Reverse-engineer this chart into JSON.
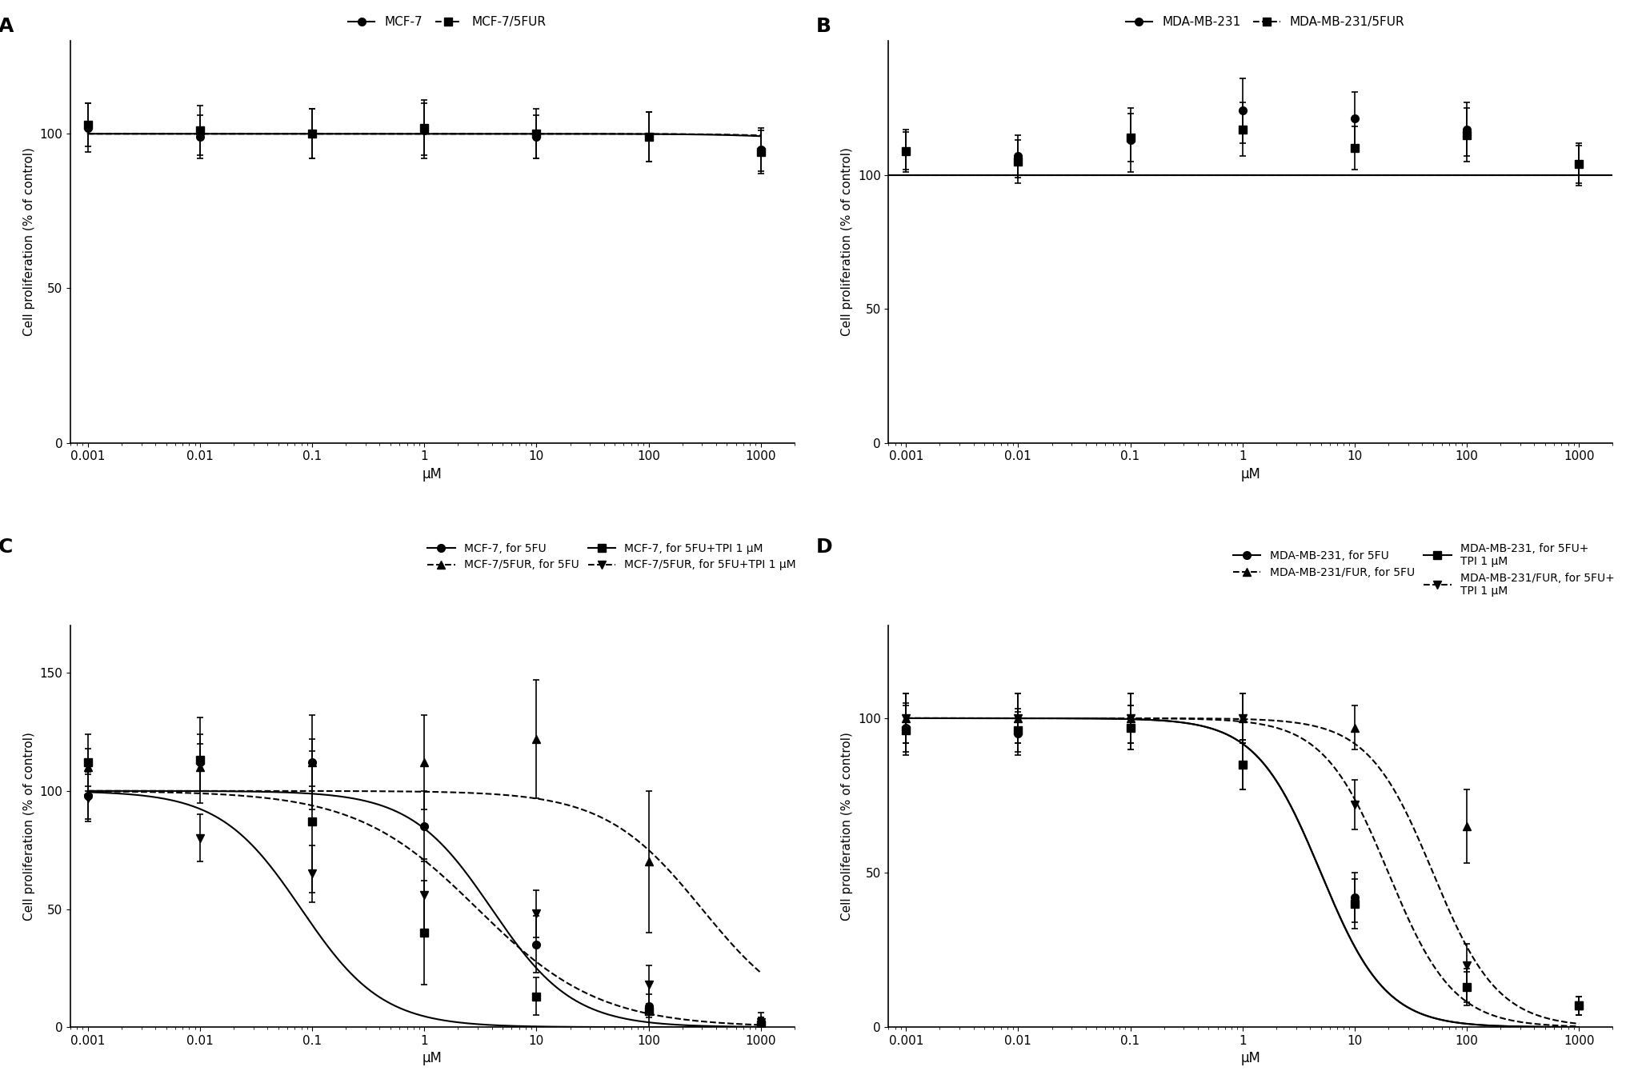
{
  "xvals": [
    0.001,
    0.01,
    0.1,
    1,
    10,
    100,
    1000
  ],
  "xtick_labels": [
    "0.001",
    "0.01",
    "0.1",
    "1",
    "10",
    "100",
    "1000"
  ],
  "A": {
    "mcf7_y": [
      102,
      99,
      100,
      101,
      99,
      99,
      95
    ],
    "mcf7_err": [
      8,
      7,
      8,
      9,
      7,
      8,
      7
    ],
    "mcf75fur_y": [
      103,
      101,
      100,
      102,
      100,
      99,
      94
    ],
    "mcf75fur_err": [
      7,
      8,
      8,
      9,
      8,
      8,
      7
    ],
    "ylim": [
      0,
      130
    ],
    "yticks": [
      0,
      50,
      100
    ],
    "ic50_mcf7": 8000,
    "ic50_mcf75fur": 12000
  },
  "B": {
    "mda_y": [
      109,
      107,
      113,
      124,
      121,
      117,
      104
    ],
    "mda_err": [
      8,
      8,
      12,
      12,
      10,
      10,
      8
    ],
    "mda5fur_y": [
      109,
      105,
      114,
      117,
      110,
      115,
      104
    ],
    "mda5fur_err": [
      7,
      8,
      9,
      10,
      8,
      10,
      7
    ],
    "ylim": [
      0,
      150
    ],
    "yticks": [
      0,
      50,
      100
    ]
  },
  "C": {
    "mcf7_5fu_y": [
      98,
      112,
      112,
      85,
      35,
      9,
      2
    ],
    "mcf7_5fu_err": [
      10,
      12,
      20,
      15,
      12,
      5,
      2
    ],
    "mcf7_5fuTPI_y": [
      112,
      113,
      87,
      40,
      13,
      7,
      1
    ],
    "mcf7_5fuTPI_err": [
      12,
      18,
      30,
      22,
      8,
      12,
      1
    ],
    "mcf75fur_5fu_y": [
      110,
      110,
      112,
      112,
      122,
      70,
      3
    ],
    "mcf75fur_5fu_err": [
      8,
      10,
      10,
      20,
      25,
      30,
      3
    ],
    "mcf75fur_5fuTPI_y": [
      97,
      80,
      65,
      56,
      48,
      18,
      2
    ],
    "mcf75fur_5fuTPI_err": [
      10,
      10,
      12,
      15,
      10,
      8,
      2
    ],
    "ylim": [
      0,
      170
    ],
    "yticks": [
      0,
      50,
      100,
      150
    ],
    "ic50_mcf7_5fu": 4.0,
    "ic50_mcf7_5fuTPI": 0.08,
    "ic50_mcf75fur_5fu": 300,
    "ic50_mcf75fur_5fuTPI": 3.0,
    "hill_mcf7_5fu": 1.2,
    "hill_mcf7_5fuTPI": 1.2,
    "hill_mcf75fur_5fu": 1.0,
    "hill_mcf75fur_5fuTPI": 0.8
  },
  "D": {
    "mda_5fu_y": [
      97,
      95,
      97,
      85,
      42,
      13,
      7
    ],
    "mda_5fu_err": [
      8,
      7,
      7,
      8,
      8,
      6,
      3
    ],
    "mda_5fuTPI_y": [
      96,
      96,
      97,
      85,
      40,
      13,
      7
    ],
    "mda_5fuTPI_err": [
      8,
      7,
      7,
      8,
      8,
      5,
      3
    ],
    "mda5fur_5fu_y": [
      100,
      100,
      100,
      100,
      97,
      65,
      7
    ],
    "mda5fur_5fu_err": [
      8,
      8,
      8,
      8,
      7,
      12,
      3
    ],
    "mda5fur_5fuTPI_y": [
      100,
      100,
      100,
      100,
      72,
      20,
      7
    ],
    "mda5fur_5fuTPI_err": [
      8,
      8,
      8,
      8,
      8,
      7,
      3
    ],
    "ylim": [
      0,
      130
    ],
    "yticks": [
      0,
      50,
      100
    ],
    "ic50_mda_5fu": 5.0,
    "ic50_mda_5fuTPI": 5.0,
    "ic50_mda5fur_5fu": 50,
    "ic50_mda5fur_5fuTPI": 20,
    "hill_mda_5fu": 1.5,
    "hill_mda_5fuTPI": 1.5,
    "hill_mda5fur_5fu": 1.5,
    "hill_mda5fur_5fuTPI": 1.5
  },
  "xlabel": "μM",
  "ylabel": "Cell proliferation (% of control)",
  "background": "#ffffff"
}
